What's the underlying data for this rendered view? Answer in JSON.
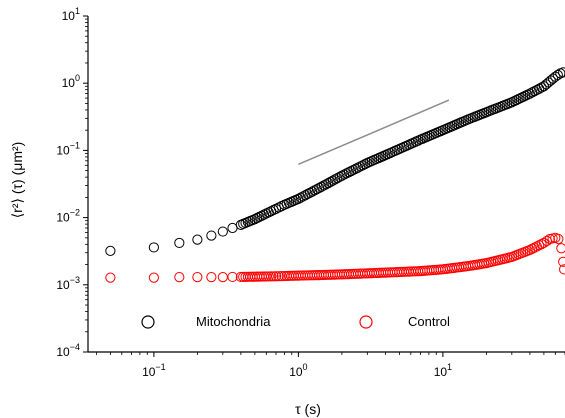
{
  "chart_data": {
    "type": "scatter",
    "x_scale": "log",
    "y_scale": "log",
    "xlabel": "τ (s)",
    "ylabel": "⟨r²⟩ (τ) (μm²)",
    "xlim": [
      0.035,
      70
    ],
    "ylim": [
      0.0001,
      10
    ],
    "x_ticks": [
      {
        "value": 0.1,
        "base": "10",
        "exp": "−1"
      },
      {
        "value": 1,
        "base": "10",
        "exp": "0"
      },
      {
        "value": 10,
        "base": "10",
        "exp": "1"
      }
    ],
    "y_ticks": [
      {
        "value": 0.0001,
        "base": "10",
        "exp": "−4"
      },
      {
        "value": 0.001,
        "base": "10",
        "exp": "−3"
      },
      {
        "value": 0.01,
        "base": "10",
        "exp": "−2"
      },
      {
        "value": 0.1,
        "base": "10",
        "exp": "−1"
      },
      {
        "value": 1,
        "base": "10",
        "exp": "0"
      },
      {
        "value": 10,
        "base": "10",
        "exp": "1"
      }
    ],
    "grid": false,
    "legend_position": "bottom",
    "series": [
      {
        "name": "Mitochondria",
        "color": "#000000",
        "marker": "open-circle",
        "points": [
          [
            0.05,
            0.0032
          ],
          [
            0.1,
            0.0036
          ],
          [
            0.15,
            0.0042
          ],
          [
            0.2,
            0.0047
          ],
          [
            0.25,
            0.0054
          ],
          [
            0.3,
            0.0062
          ],
          [
            0.35,
            0.007
          ],
          [
            0.4,
            0.0078
          ],
          [
            0.5,
            0.0095
          ],
          [
            0.6,
            0.0115
          ],
          [
            0.7,
            0.0135
          ],
          [
            0.8,
            0.0155
          ],
          [
            1,
            0.019
          ],
          [
            1.5,
            0.03
          ],
          [
            2,
            0.042
          ],
          [
            3,
            0.065
          ],
          [
            4,
            0.085
          ],
          [
            5,
            0.105
          ],
          [
            7,
            0.145
          ],
          [
            10,
            0.2
          ],
          [
            15,
            0.29
          ],
          [
            20,
            0.37
          ],
          [
            30,
            0.52
          ],
          [
            40,
            0.7
          ],
          [
            50,
            0.9
          ],
          [
            60,
            1.25
          ],
          [
            65,
            1.4
          ],
          [
            68,
            1.45
          ]
        ]
      },
      {
        "name": "Control",
        "color": "#ff0000",
        "marker": "open-circle",
        "points": [
          [
            0.05,
            0.00128
          ],
          [
            0.1,
            0.00128
          ],
          [
            0.15,
            0.0013
          ],
          [
            0.2,
            0.0013
          ],
          [
            0.25,
            0.0013
          ],
          [
            0.3,
            0.0013
          ],
          [
            0.35,
            0.00131
          ],
          [
            0.4,
            0.00131
          ],
          [
            0.5,
            0.00132
          ],
          [
            0.6,
            0.00133
          ],
          [
            0.7,
            0.00134
          ],
          [
            0.8,
            0.00135
          ],
          [
            1,
            0.00137
          ],
          [
            1.5,
            0.0014
          ],
          [
            2,
            0.00143
          ],
          [
            3,
            0.00148
          ],
          [
            5,
            0.00155
          ],
          [
            7,
            0.0016
          ],
          [
            10,
            0.0017
          ],
          [
            15,
            0.0019
          ],
          [
            20,
            0.0021
          ],
          [
            30,
            0.0026
          ],
          [
            40,
            0.0033
          ],
          [
            50,
            0.0042
          ],
          [
            55,
            0.0048
          ],
          [
            60,
            0.005
          ],
          [
            63,
            0.0048
          ],
          [
            66,
            0.0035
          ],
          [
            68,
            0.0022
          ],
          [
            69,
            0.0017
          ]
        ]
      }
    ],
    "reference_line": {
      "color": "#8c8c8c",
      "points": [
        [
          1,
          0.062
        ],
        [
          11,
          0.56
        ]
      ]
    }
  }
}
